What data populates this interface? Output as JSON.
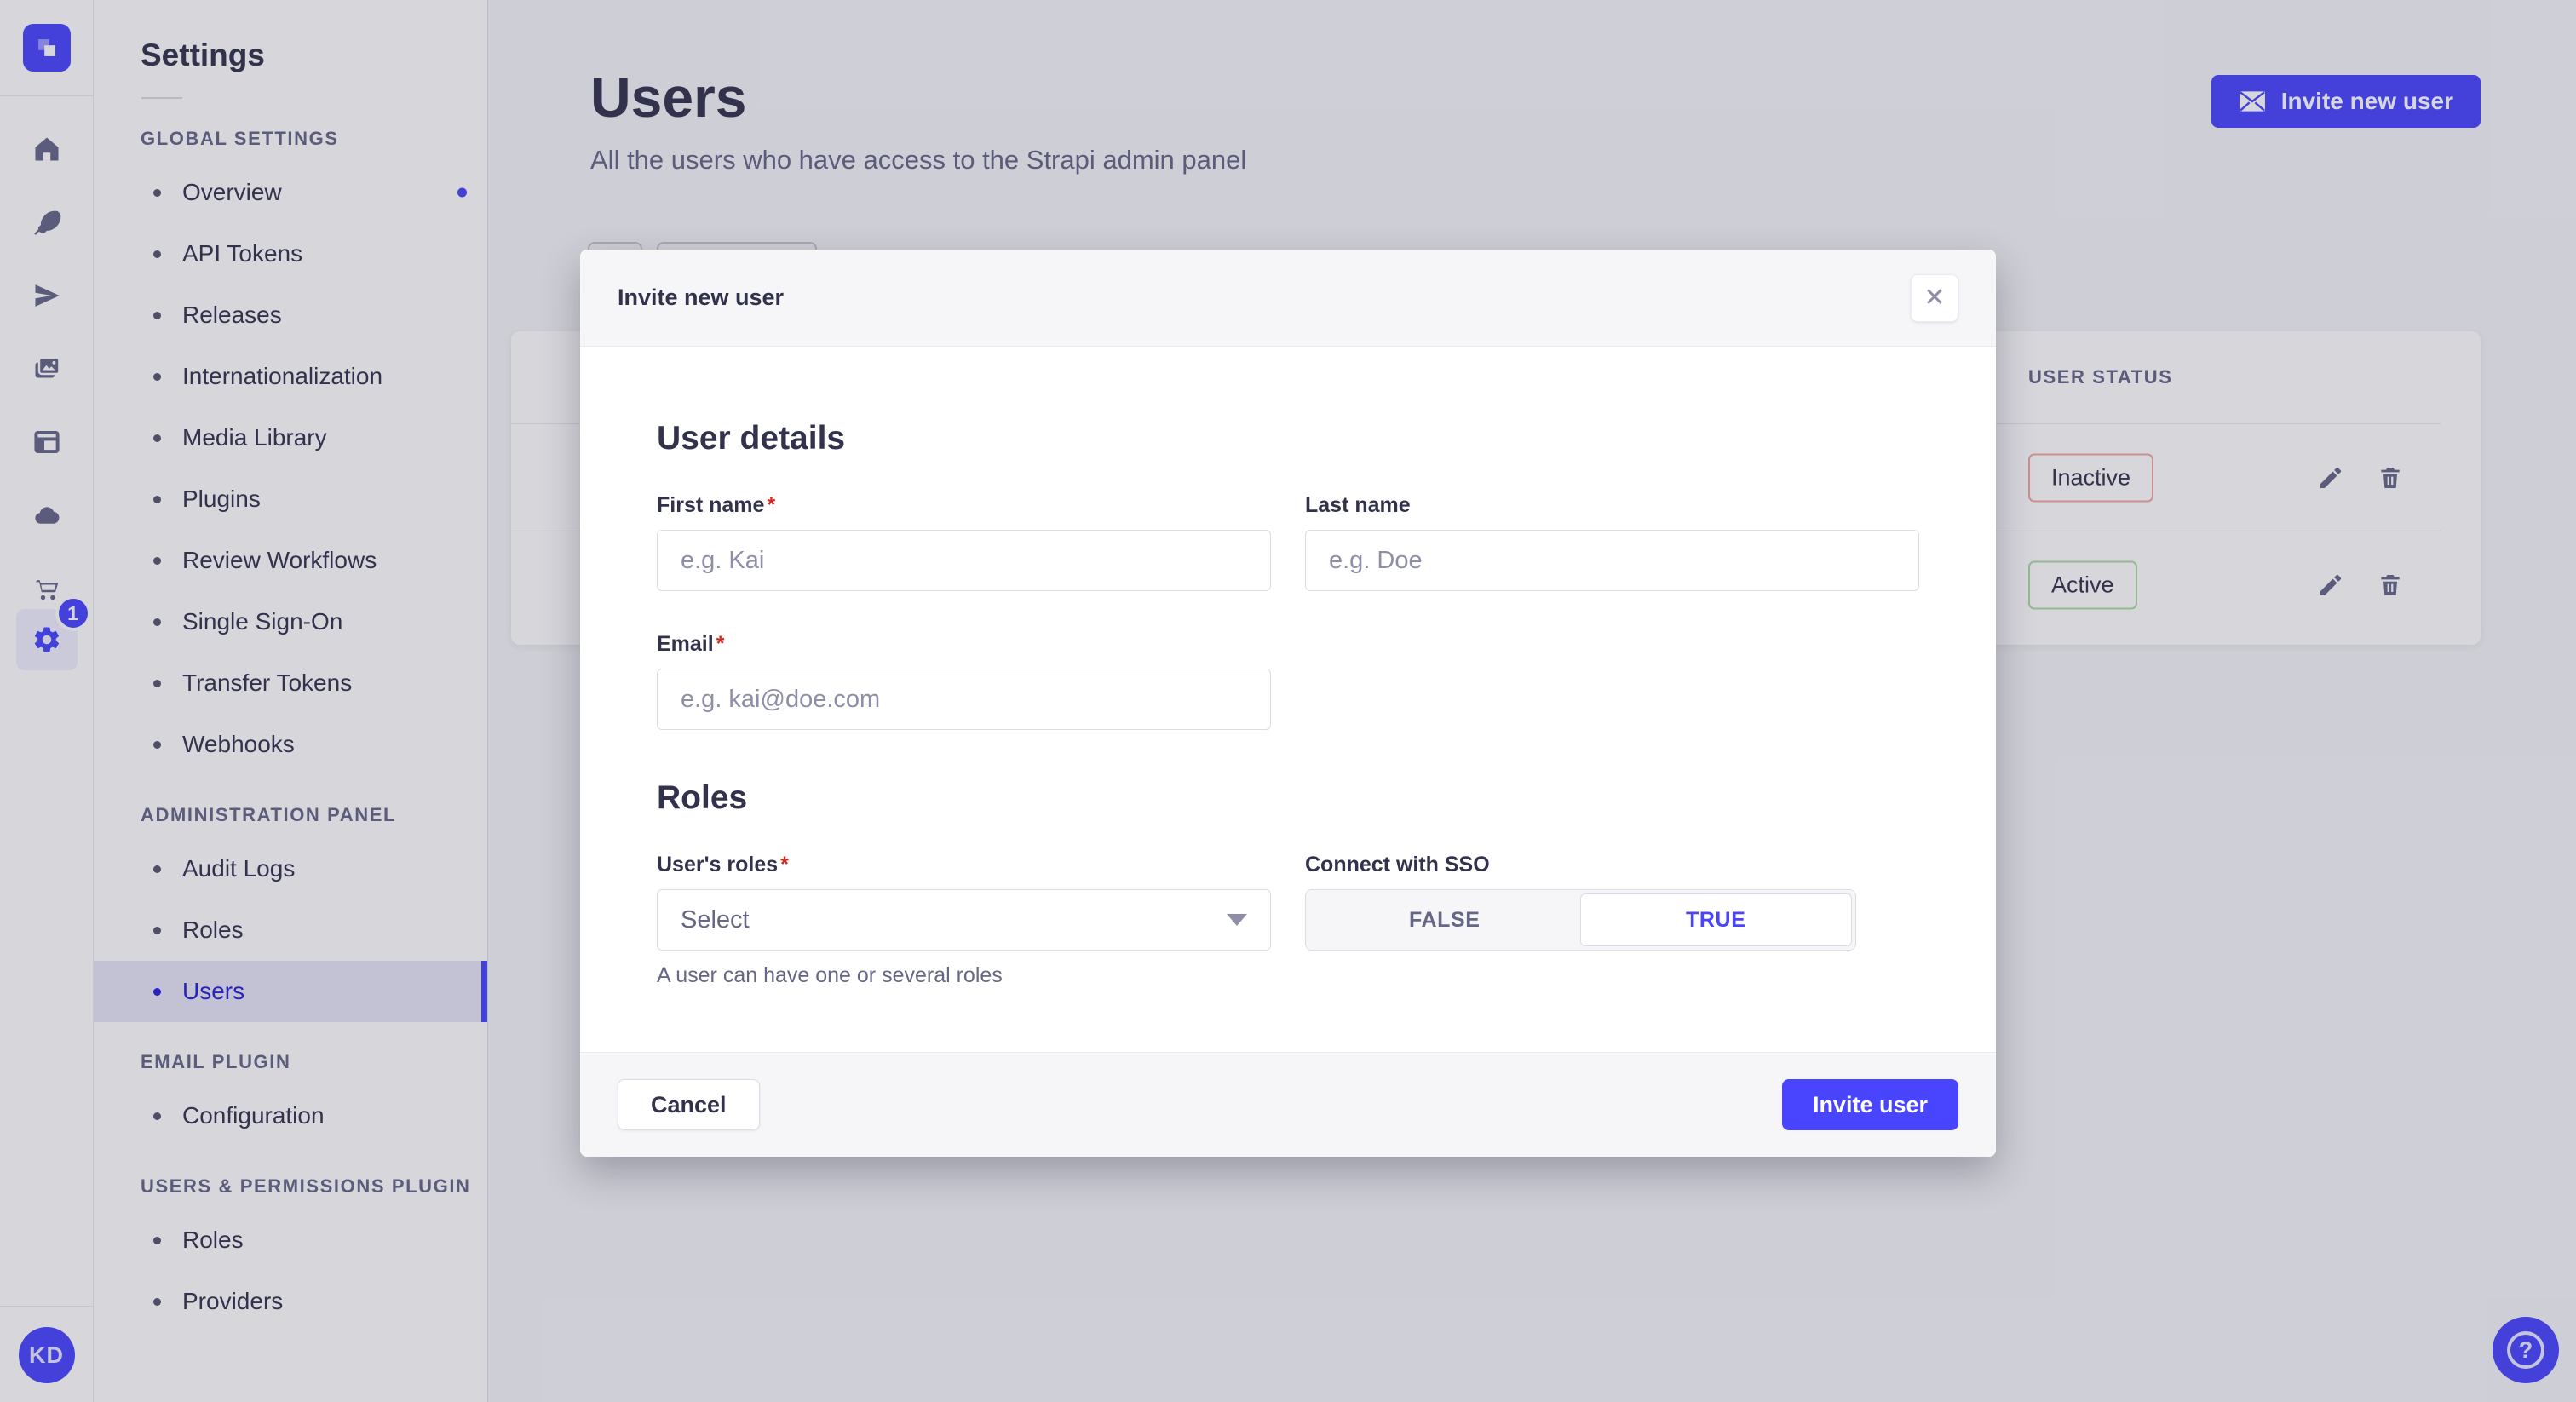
{
  "brand": {
    "accent": "#4945ff",
    "logo_icon": "strapi-logo-icon"
  },
  "sidebar": {
    "icons": [
      "home-icon",
      "content-manager-icon",
      "releases-icon",
      "media-library-icon",
      "content-type-builder-icon",
      "cloud-icon",
      "marketplace-icon",
      "settings-icon"
    ],
    "settings_badge": "1",
    "avatar_initials": "KD"
  },
  "nav": {
    "title": "Settings",
    "sections": [
      {
        "label": "GLOBAL SETTINGS",
        "items": [
          {
            "label": "Overview",
            "notification": true
          },
          {
            "label": "API Tokens"
          },
          {
            "label": "Releases"
          },
          {
            "label": "Internationalization"
          },
          {
            "label": "Media Library"
          },
          {
            "label": "Plugins"
          },
          {
            "label": "Review Workflows"
          },
          {
            "label": "Single Sign-On"
          },
          {
            "label": "Transfer Tokens"
          },
          {
            "label": "Webhooks"
          }
        ]
      },
      {
        "label": "ADMINISTRATION PANEL",
        "items": [
          {
            "label": "Audit Logs"
          },
          {
            "label": "Roles"
          },
          {
            "label": "Users",
            "active": true
          }
        ]
      },
      {
        "label": "EMAIL PLUGIN",
        "items": [
          {
            "label": "Configuration"
          }
        ]
      },
      {
        "label": "USERS & PERMISSIONS PLUGIN",
        "items": [
          {
            "label": "Roles"
          },
          {
            "label": "Providers"
          }
        ]
      }
    ]
  },
  "header": {
    "title": "Users",
    "subtitle": "All the users who have access to the Strapi admin panel",
    "invite_button": "Invite new user"
  },
  "table": {
    "status_column": "USER STATUS",
    "rows": [
      {
        "status": "Inactive",
        "variant": "danger"
      },
      {
        "status": "Active",
        "variant": "success"
      }
    ]
  },
  "modal": {
    "title": "Invite new user",
    "close_icon": "close-icon",
    "user_details_title": "User details",
    "roles_title": "Roles",
    "fields": {
      "first_name": {
        "label": "First name",
        "required": "*",
        "placeholder": "e.g. Kai"
      },
      "last_name": {
        "label": "Last name",
        "placeholder": "e.g. Doe"
      },
      "email": {
        "label": "Email",
        "required": "*",
        "placeholder": "e.g. kai@doe.com"
      },
      "roles": {
        "label": "User's roles",
        "required": "*",
        "value": "Select",
        "helper": "A user can have one or several roles"
      },
      "sso": {
        "label": "Connect with SSO",
        "options": [
          "FALSE",
          "TRUE"
        ],
        "selected": "TRUE"
      }
    },
    "footer": {
      "cancel": "Cancel",
      "submit": "Invite user"
    }
  },
  "help": {
    "icon": "question-mark-icon"
  }
}
